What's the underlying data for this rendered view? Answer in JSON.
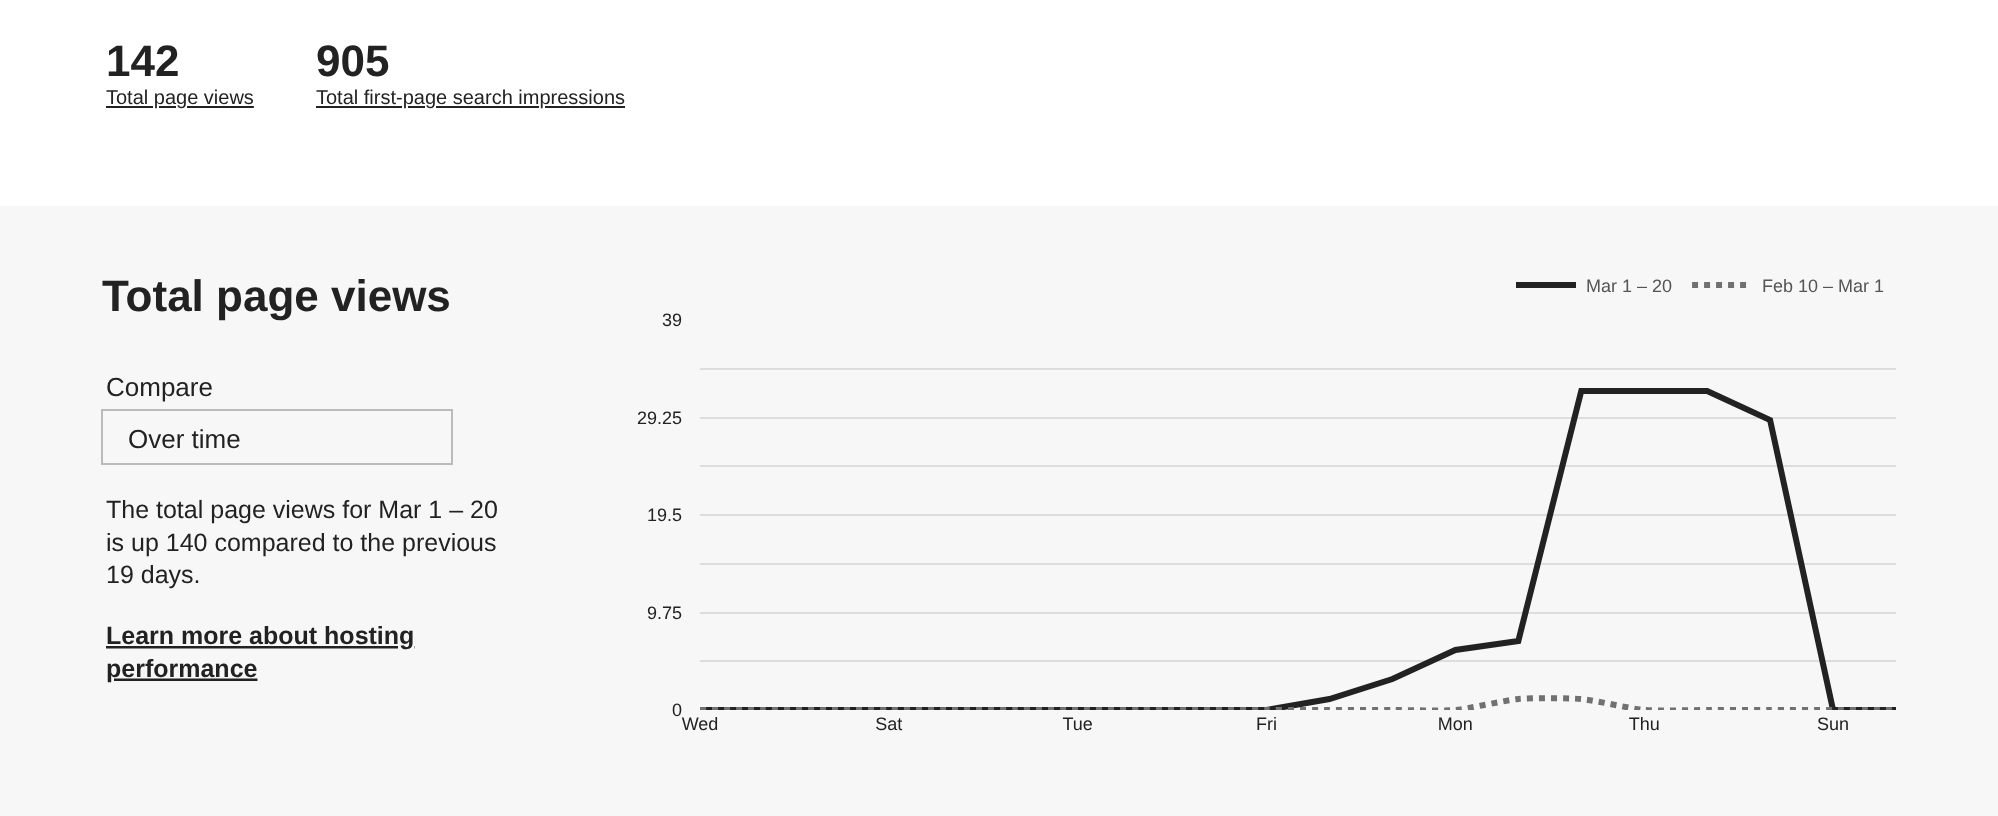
{
  "chart_data": {
    "type": "line",
    "title": "Total page views",
    "annotations": [
      "142",
      "Total page views",
      "905",
      "Total first-page search impressions",
      "Compare",
      "Over time",
      "The total page views for Mar 1 – 20 is up 140 compared to the previous 19 days.",
      "Learn more about hosting performance"
    ],
    "categories": [
      "Wed",
      null,
      null,
      "Sat",
      null,
      null,
      "Tue",
      null,
      null,
      "Fri",
      null,
      null,
      "Mon",
      null,
      null,
      "Thu",
      null,
      null,
      "Sun",
      null
    ],
    "series": [
      {
        "name": "Mar 1 – 20",
        "color": "#222222",
        "line_style": "solid",
        "values": [
          0,
          0,
          0,
          0,
          0,
          0,
          0,
          0,
          0,
          0,
          1.1,
          3.1,
          6.0,
          6.9,
          31.9,
          31.9,
          31.9,
          29.0,
          0,
          0
        ]
      },
      {
        "name": "Feb 10 – Mar 1",
        "color": "#717171",
        "line_style": "dotted",
        "values": [
          0,
          0,
          0,
          0,
          0,
          0,
          0,
          0,
          0,
          0,
          0,
          0,
          0,
          1.1,
          1.1,
          0,
          0,
          0,
          0,
          0
        ]
      }
    ],
    "ylim": [
      0,
      39
    ],
    "yticks": [
      0,
      {
        "value": 4.875,
        "label": null
      },
      9.75,
      {
        "value": 14.625,
        "label": null
      },
      19.5,
      {
        "value": 24.375,
        "label": null
      },
      29.25,
      {
        "value": 34.125,
        "label": null
      },
      39
    ],
    "grid": "y",
    "legend": "top right",
    "marker": "none"
  }
}
